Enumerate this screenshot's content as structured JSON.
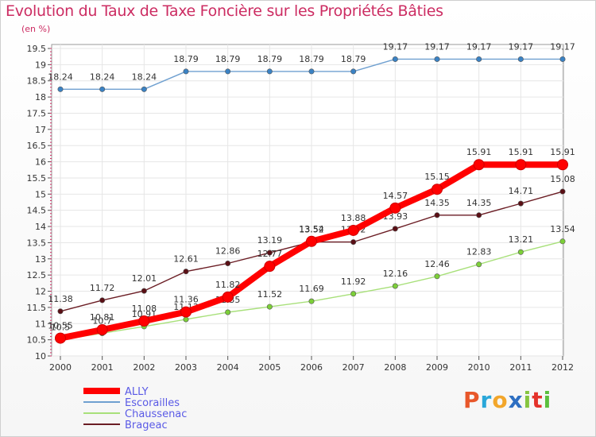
{
  "header": {
    "title": "Evolution du Taux de Taxe Foncière sur les Propriétés Bâties",
    "subtitle": "(en %)"
  },
  "logo": {
    "text": "Proxiti",
    "letters": [
      {
        "ch": "P",
        "color": "#e8572a"
      },
      {
        "ch": "r",
        "color": "#2aa7d9"
      },
      {
        "ch": "o",
        "color": "#f2a62b"
      },
      {
        "ch": "x",
        "color": "#2e6fc2"
      },
      {
        "ch": "i",
        "color": "#86c540"
      },
      {
        "ch": "t",
        "color": "#e4322b"
      },
      {
        "ch": "i",
        "color": "#5bbf3d"
      }
    ]
  },
  "chart_data": {
    "type": "line",
    "title": "Evolution du Taux de Taxe Foncière sur les Propriétés Bâties",
    "ylabel": "(en %)",
    "xlabel": "",
    "x": [
      "2000",
      "2001",
      "2002",
      "2003",
      "2004",
      "2005",
      "2006",
      "2007",
      "2008",
      "2009",
      "2010",
      "2011",
      "2012"
    ],
    "ylim": [
      10,
      19.5
    ],
    "yticks": [
      "10",
      "10.5",
      "11",
      "11.5",
      "12",
      "12.5",
      "13",
      "13.5",
      "14",
      "14.5",
      "15",
      "15.5",
      "16",
      "16.5",
      "17",
      "17.5",
      "18",
      "18.5",
      "19",
      "19.5"
    ],
    "grid": true,
    "legend_position": "bottom-left",
    "series": [
      {
        "name": "ALLY",
        "color": "#ff0000",
        "values": [
          10.55,
          10.81,
          11.08,
          11.36,
          11.82,
          12.77,
          13.54,
          13.88,
          14.57,
          15.15,
          15.91,
          15.91,
          15.91
        ],
        "labels": [
          "10.55",
          "10.81",
          "11.08",
          "11.36",
          "11.82",
          "12.77",
          "13.54",
          "13.88",
          "14.57",
          "15.15",
          "15.91",
          "15.91",
          "15.91"
        ]
      },
      {
        "name": "Escorailles",
        "color": "#6fa0d0",
        "values": [
          18.24,
          18.24,
          18.24,
          18.79,
          18.79,
          18.79,
          18.79,
          18.79,
          19.17,
          19.17,
          19.17,
          19.17,
          19.17
        ],
        "labels": [
          "18.24",
          "18.24",
          "18.24",
          "18.79",
          "18.79",
          "18.79",
          "18.79",
          "18.79",
          "19.17",
          "19.17",
          "19.17",
          "19.17",
          "19.17"
        ]
      },
      {
        "name": "Chaussenac",
        "color": "#a8e07a",
        "values": [
          10.5,
          10.7,
          10.91,
          11.13,
          11.35,
          11.52,
          11.69,
          11.92,
          12.16,
          12.46,
          12.83,
          13.21,
          13.54
        ],
        "labels": [
          "10.5",
          "10.7",
          "10.91",
          "11.13",
          "11.35",
          "11.52",
          "11.69",
          "11.92",
          "12.16",
          "12.46",
          "12.83",
          "13.21",
          "13.54"
        ]
      },
      {
        "name": "Brageac",
        "color": "#6b1d24",
        "values": [
          11.38,
          11.72,
          12.01,
          12.61,
          12.86,
          13.19,
          13.52,
          13.52,
          13.93,
          14.35,
          14.35,
          14.71,
          15.08
        ],
        "labels": [
          "11.38",
          "11.72",
          "12.01",
          "12.61",
          "12.86",
          "13.19",
          "13.52",
          "13.52",
          "13.93",
          "14.35",
          "14.35",
          "14.71",
          "15.08"
        ]
      }
    ]
  }
}
